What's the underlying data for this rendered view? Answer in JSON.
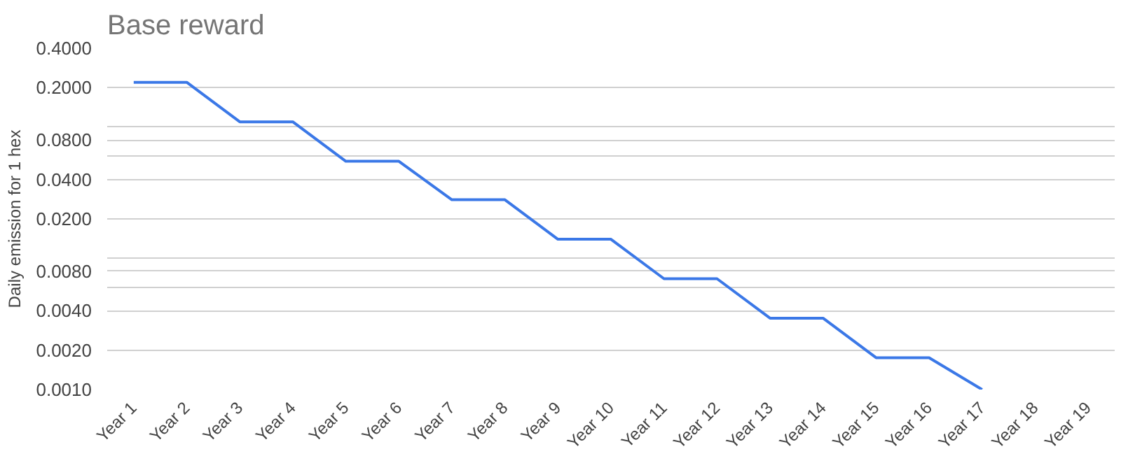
{
  "chart_data": {
    "type": "line",
    "title": "Base reward",
    "ylabel": "Daily emission for 1 hex",
    "categories": [
      "Year 1",
      "Year 2",
      "Year 3",
      "Year 4",
      "Year 5",
      "Year 6",
      "Year 7",
      "Year 8",
      "Year 9",
      "Year 10",
      "Year 11",
      "Year 12",
      "Year 13",
      "Year 14",
      "Year 15",
      "Year 16",
      "Year 17",
      "Year 18",
      "Year 19"
    ],
    "series": [
      {
        "color": "#3b78e7",
        "values": [
          0.22,
          0.22,
          0.11,
          0.11,
          0.055,
          0.055,
          0.028,
          0.028,
          0.014,
          0.014,
          0.007,
          0.007,
          0.0035,
          0.0035,
          0.00175,
          0.00175,
          0.001,
          null,
          null
        ]
      }
    ],
    "log": "y",
    "ylim": [
      0.001,
      0.4
    ],
    "yticks": [
      {
        "value": 0.001,
        "label": "0.0010"
      },
      {
        "value": 0.002,
        "label": "0.0020"
      },
      {
        "value": 0.004,
        "label": "0.0040"
      },
      {
        "value": 0.006,
        "label": null
      },
      {
        "value": 0.008,
        "label": "0.0080"
      },
      {
        "value": 0.01,
        "label": null
      },
      {
        "value": 0.02,
        "label": "0.0200"
      },
      {
        "value": 0.04,
        "label": "0.0400"
      },
      {
        "value": 0.06,
        "label": null
      },
      {
        "value": 0.08,
        "label": "0.0800"
      },
      {
        "value": 0.1,
        "label": null
      },
      {
        "value": 0.2,
        "label": "0.2000"
      },
      {
        "value": 0.4,
        "label": "0.4000"
      }
    ],
    "grid": "y",
    "marker": "none",
    "line_style": "solid"
  }
}
